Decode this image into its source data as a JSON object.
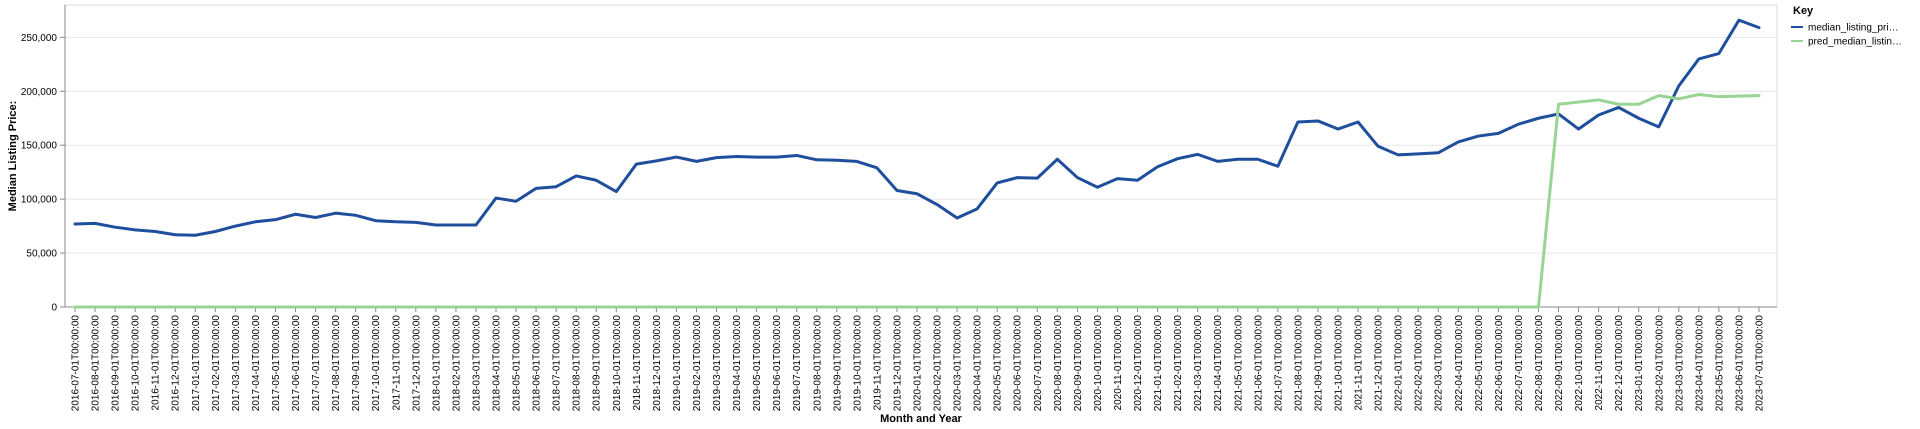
{
  "chart_data": {
    "type": "line",
    "x": [
      "2016-07-01T00:00:00",
      "2016-08-01T00:00:00",
      "2016-09-01T00:00:00",
      "2016-10-01T00:00:00",
      "2016-11-01T00:00:00",
      "2016-12-01T00:00:00",
      "2017-01-01T00:00:00",
      "2017-02-01T00:00:00",
      "2017-03-01T00:00:00",
      "2017-04-01T00:00:00",
      "2017-05-01T00:00:00",
      "2017-06-01T00:00:00",
      "2017-07-01T00:00:00",
      "2017-08-01T00:00:00",
      "2017-09-01T00:00:00",
      "2017-10-01T00:00:00",
      "2017-11-01T00:00:00",
      "2017-12-01T00:00:00",
      "2018-01-01T00:00:00",
      "2018-02-01T00:00:00",
      "2018-03-01T00:00:00",
      "2018-04-01T00:00:00",
      "2018-05-01T00:00:00",
      "2018-06-01T00:00:00",
      "2018-07-01T00:00:00",
      "2018-08-01T00:00:00",
      "2018-09-01T00:00:00",
      "2018-10-01T00:00:00",
      "2018-11-01T00:00:00",
      "2018-12-01T00:00:00",
      "2019-01-01T00:00:00",
      "2019-02-01T00:00:00",
      "2019-03-01T00:00:00",
      "2019-04-01T00:00:00",
      "2019-05-01T00:00:00",
      "2019-06-01T00:00:00",
      "2019-07-01T00:00:00",
      "2019-08-01T00:00:00",
      "2019-09-01T00:00:00",
      "2019-10-01T00:00:00",
      "2019-11-01T00:00:00",
      "2019-12-01T00:00:00",
      "2020-01-01T00:00:00",
      "2020-02-01T00:00:00",
      "2020-03-01T00:00:00",
      "2020-04-01T00:00:00",
      "2020-05-01T00:00:00",
      "2020-06-01T00:00:00",
      "2020-07-01T00:00:00",
      "2020-08-01T00:00:00",
      "2020-09-01T00:00:00",
      "2020-10-01T00:00:00",
      "2020-11-01T00:00:00",
      "2020-12-01T00:00:00",
      "2021-01-01T00:00:00",
      "2021-02-01T00:00:00",
      "2021-03-01T00:00:00",
      "2021-04-01T00:00:00",
      "2021-05-01T00:00:00",
      "2021-06-01T00:00:00",
      "2021-07-01T00:00:00",
      "2021-08-01T00:00:00",
      "2021-09-01T00:00:00",
      "2021-10-01T00:00:00",
      "2021-11-01T00:00:00",
      "2021-12-01T00:00:00",
      "2022-01-01T00:00:00",
      "2022-02-01T00:00:00",
      "2022-03-01T00:00:00",
      "2022-04-01T00:00:00",
      "2022-05-01T00:00:00",
      "2022-06-01T00:00:00",
      "2022-07-01T00:00:00",
      "2022-08-01T00:00:00",
      "2022-09-01T00:00:00",
      "2022-10-01T00:00:00",
      "2022-11-01T00:00:00",
      "2022-12-01T00:00:00",
      "2023-01-01T00:00:00",
      "2023-02-01T00:00:00",
      "2023-03-01T00:00:00",
      "2023-04-01T00:00:00",
      "2023-05-01T00:00:00",
      "2023-06-01T00:00:00",
      "2023-07-01T00:00:00"
    ],
    "series": [
      {
        "name": "median_listing_pri…",
        "color": "#1f4e9c",
        "values": [
          77000,
          77500,
          74000,
          71500,
          70000,
          67000,
          66500,
          70000,
          75000,
          79000,
          81000,
          86000,
          83000,
          87000,
          85000,
          80000,
          79000,
          78500,
          76000,
          76000,
          76000,
          101000,
          98000,
          110000,
          111500,
          121500,
          117500,
          107000,
          132500,
          135500,
          139000,
          135000,
          138500,
          139500,
          139000,
          139000,
          140500,
          136500,
          136000,
          135000,
          129000,
          108000,
          105000,
          95000,
          82500,
          91000,
          115000,
          120000,
          119500,
          137000,
          120000,
          111000,
          119000,
          117500,
          130000,
          137500,
          141500,
          135000,
          137000,
          137000,
          130500,
          171500,
          172500,
          165000,
          171500,
          149000,
          141000,
          142000,
          143000,
          153000,
          158500,
          161000,
          169500,
          175000,
          179000,
          165000,
          178000,
          185000,
          175000,
          167000,
          205000,
          230000,
          235000,
          266000,
          259000
        ]
      },
      {
        "name": "pred_median_listin…",
        "color": "#98d594",
        "values": [
          0,
          0,
          0,
          0,
          0,
          0,
          0,
          0,
          0,
          0,
          0,
          0,
          0,
          0,
          0,
          0,
          0,
          0,
          0,
          0,
          0,
          0,
          0,
          0,
          0,
          0,
          0,
          0,
          0,
          0,
          0,
          0,
          0,
          0,
          0,
          0,
          0,
          0,
          0,
          0,
          0,
          0,
          0,
          0,
          0,
          0,
          0,
          0,
          0,
          0,
          0,
          0,
          0,
          0,
          0,
          0,
          0,
          0,
          0,
          0,
          0,
          0,
          0,
          0,
          0,
          0,
          0,
          0,
          0,
          0,
          0,
          0,
          0,
          0,
          188000,
          190000,
          192000,
          188000,
          188000,
          196000,
          193000,
          197000,
          195000,
          195500,
          196000
        ]
      }
    ],
    "title": "",
    "xlabel": "Month and Year",
    "ylabel": "Median Listing Price:",
    "y_ticks": [
      0,
      50000,
      100000,
      150000,
      200000,
      250000
    ],
    "y_tick_labels": [
      "0",
      "50,000",
      "100,000",
      "150,000",
      "200,000",
      "250,000"
    ],
    "ylim": [
      0,
      280000
    ],
    "grid": true,
    "legend": {
      "title": "Key",
      "placement": "top-right"
    }
  }
}
